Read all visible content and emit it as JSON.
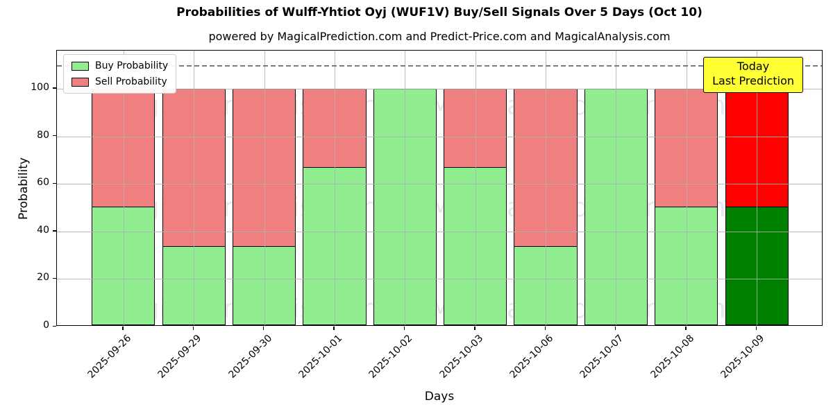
{
  "chart_data": {
    "type": "bar",
    "stacked": true,
    "title": "Probabilities of Wulff-Yhtiot Oyj (WUF1V) Buy/Sell Signals Over 5 Days (Oct 10)",
    "subtitle": "powered by MagicalPrediction.com and Predict-Price.com and MagicalAnalysis.com",
    "xlabel": "Days",
    "ylabel": "Probability",
    "categories": [
      "2025-09-26",
      "2025-09-29",
      "2025-09-30",
      "2025-10-01",
      "2025-10-02",
      "2025-10-03",
      "2025-10-06",
      "2025-10-07",
      "2025-10-08",
      "2025-10-09"
    ],
    "series": [
      {
        "name": "Buy Probability",
        "values": [
          50,
          33.33,
          33.33,
          66.67,
          100,
          66.67,
          33.33,
          100,
          50,
          50
        ],
        "color": "#90EE90",
        "today_color": "#008000"
      },
      {
        "name": "Sell Probability",
        "values": [
          50,
          66.67,
          66.67,
          33.33,
          0,
          33.33,
          66.67,
          0,
          50,
          50
        ],
        "color": "#F08080",
        "today_color": "#FF0000"
      }
    ],
    "today_index": 9,
    "ylim": [
      0,
      116
    ],
    "yticks": [
      0,
      20,
      40,
      60,
      80,
      100
    ],
    "grid": true,
    "legend_position": "upper-left",
    "dashed_line_y": 110,
    "legend": {
      "items": [
        {
          "label": "Buy Probability",
          "color": "#90EE90"
        },
        {
          "label": "Sell Probability",
          "color": "#F08080"
        }
      ]
    },
    "annotation": {
      "line1": "Today",
      "line2": "Last Prediction",
      "bg_color": "#FFFF33"
    },
    "watermarks": {
      "left": "MagicalAnalysis.com",
      "right": "MagicalPrediction.com"
    },
    "colors": {
      "bar_edge": "#000000",
      "dashed_line": "#7A7A7A",
      "grid": "#B0B0B0",
      "annotation_bg": "#FFFF33"
    }
  }
}
